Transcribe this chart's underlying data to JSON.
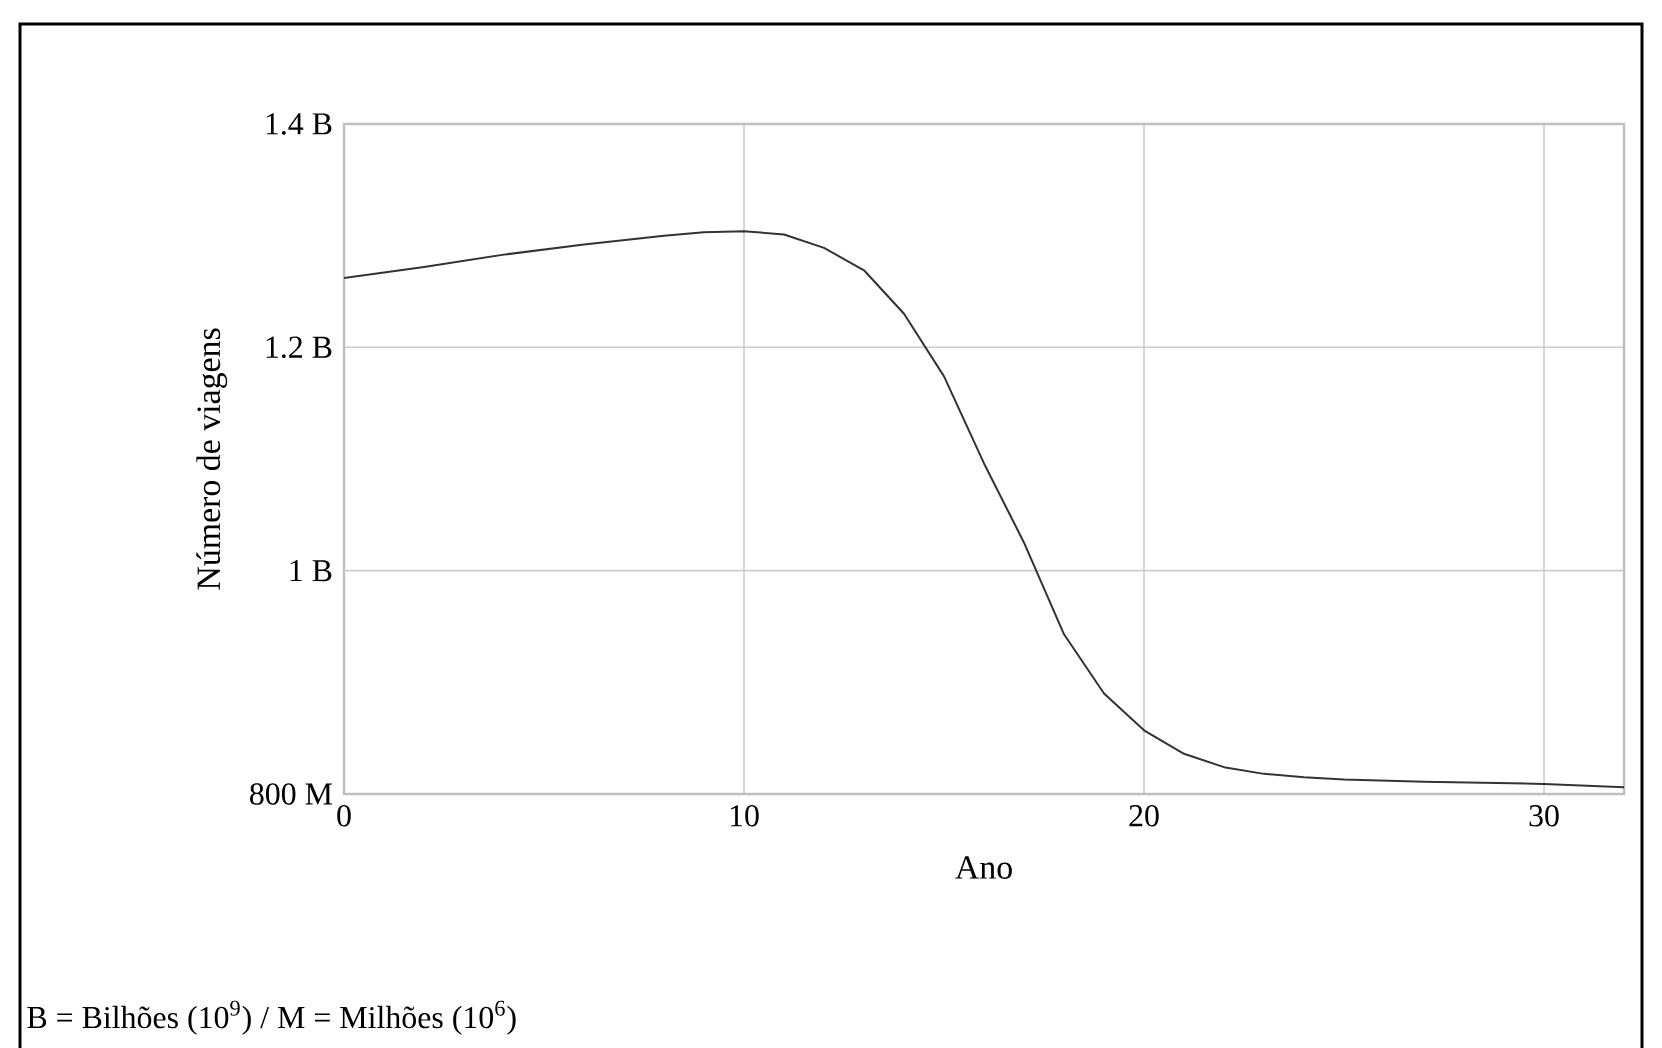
{
  "chart_data": {
    "type": "line",
    "xlabel": "Ano",
    "ylabel": "Número de viagens",
    "annotations": [
      "B = Bilhões (10$^{9}$) / M = Milhões (10$^{6}$)"
    ],
    "x": [
      0,
      2,
      4,
      6,
      8,
      9,
      10,
      11,
      12,
      13,
      14,
      15,
      16,
      17,
      18,
      19,
      20,
      21,
      22,
      23,
      24,
      25,
      27,
      30,
      32
    ],
    "series": [
      {
        "color": "#333333",
        "values": [
          1262000000,
          1272000000,
          1283000000,
          1292000000,
          1300000000,
          1303000000,
          1304000000,
          1301000000,
          1289000000,
          1269000000,
          1230000000,
          1174000000,
          1096000000,
          1025000000,
          943000000,
          890000000,
          857000000,
          836000000,
          824000000,
          818000000,
          815000000,
          813000000,
          811000000,
          809000000,
          806000000
        ]
      }
    ],
    "xlim": [
      0,
      32
    ],
    "xticks": [
      0,
      10,
      20,
      30
    ],
    "ylim": [
      800000000,
      1400000000
    ],
    "yticks": [
      {
        "value": 800000000,
        "label": "800 M"
      },
      {
        "value": 1000000000,
        "label": "1 B"
      },
      {
        "value": 1200000000,
        "label": "1.2 B"
      },
      {
        "value": 1400000000,
        "label": "1.4 B"
      }
    ],
    "grid": true,
    "marker": "none",
    "line_style": "solid"
  }
}
